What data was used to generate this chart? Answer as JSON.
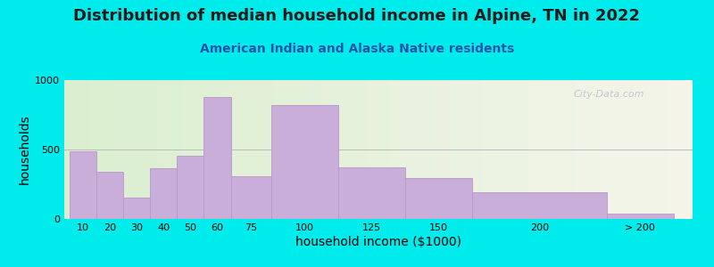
{
  "title": "Distribution of median household income in Alpine, TN in 2022",
  "subtitle": "American Indian and Alaska Native residents",
  "xlabel": "household income ($1000)",
  "ylabel": "households",
  "categories": [
    "10",
    "20",
    "30",
    "40",
    "50",
    "60",
    "75",
    "100",
    "125",
    "150",
    "200",
    "> 200"
  ],
  "values": [
    490,
    340,
    155,
    365,
    455,
    880,
    305,
    820,
    375,
    295,
    195,
    38
  ],
  "bar_color": "#c9aed9",
  "bar_edge_color": "#b898c8",
  "background_outer": "#00ecec",
  "background_inner_left": "#daefd0",
  "background_inner_right": "#f5f5ea",
  "ylim": [
    0,
    1000
  ],
  "yticks": [
    0,
    500,
    1000
  ],
  "title_fontsize": 13,
  "subtitle_fontsize": 10,
  "subtitle_color": "#2255aa",
  "axis_label_fontsize": 10,
  "tick_fontsize": 8,
  "watermark": "City-Data.com",
  "left_edges": [
    0,
    10,
    20,
    30,
    40,
    50,
    60,
    75,
    100,
    125,
    150,
    200
  ],
  "widths": [
    10,
    10,
    10,
    10,
    10,
    10,
    15,
    25,
    25,
    25,
    50,
    25
  ],
  "xlim_left": -2,
  "xlim_right": 232,
  "tick_positions": [
    5,
    15,
    25,
    35,
    45,
    55,
    67.5,
    87.5,
    112.5,
    137.5,
    175,
    212.5
  ]
}
